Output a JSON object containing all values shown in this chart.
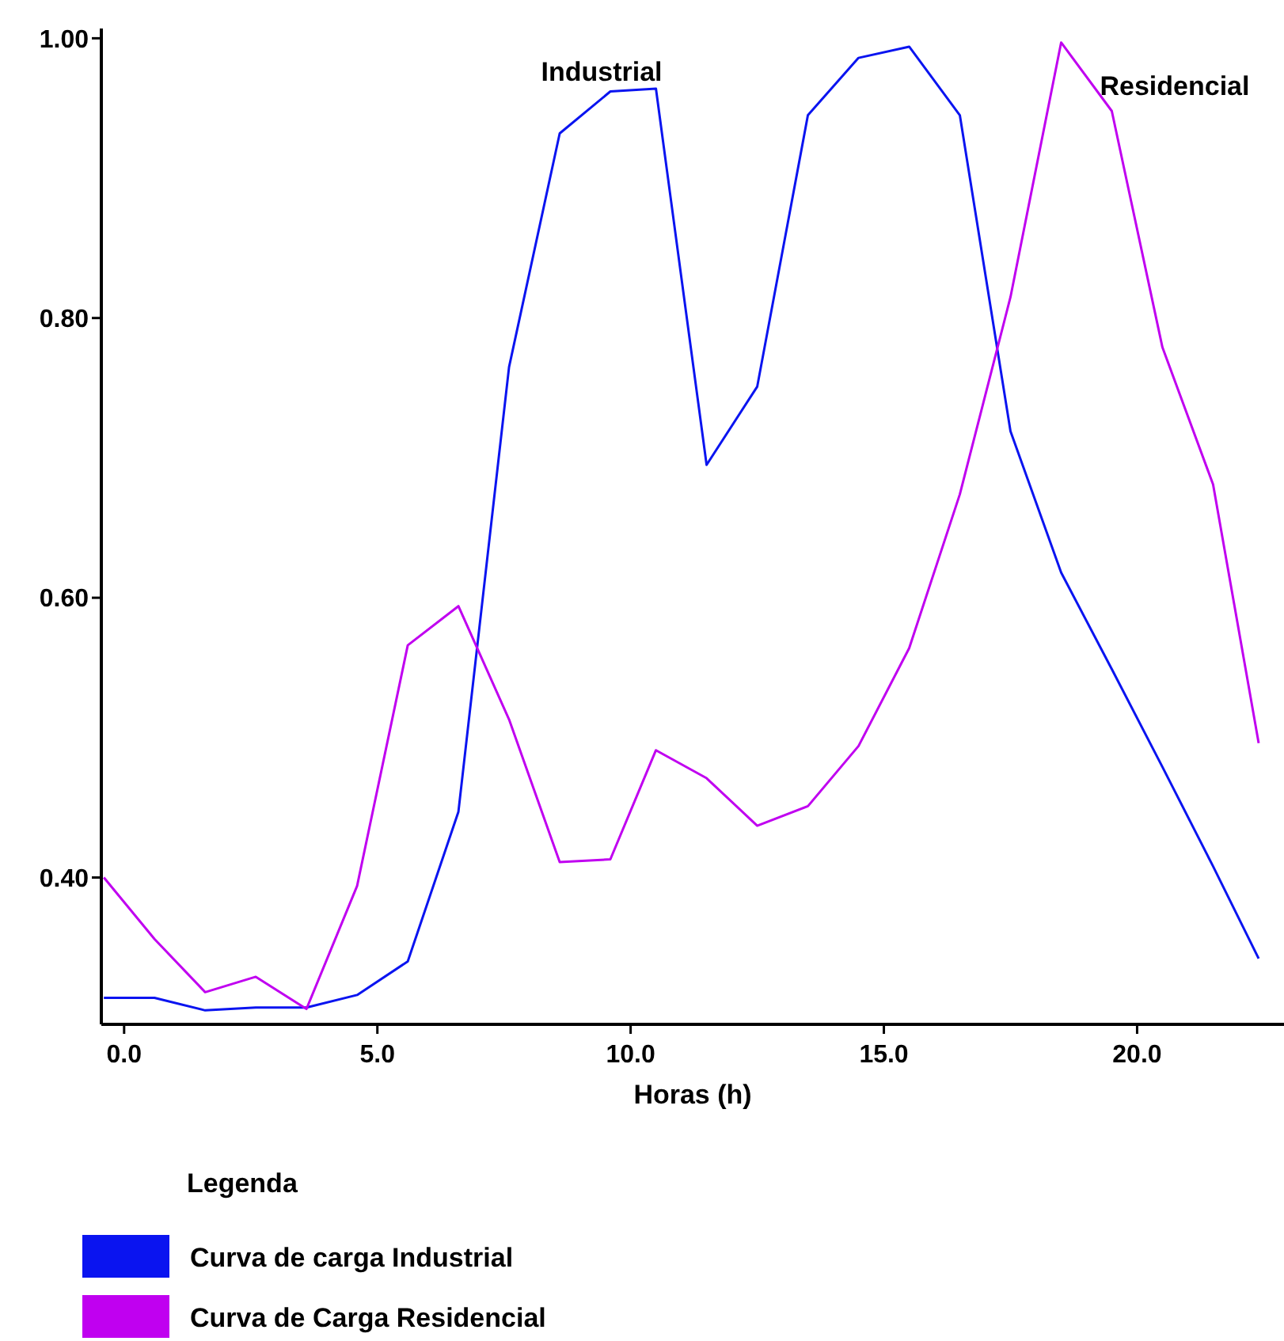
{
  "chart_data": {
    "type": "line",
    "xlabel": "Horas (h)",
    "legend_title": "Legenda",
    "x": [
      -0.4,
      0.6,
      1.6,
      2.6,
      3.6,
      4.6,
      5.6,
      6.6,
      7.6,
      8.6,
      9.6,
      10.5,
      11.5,
      12.5,
      13.5,
      14.5,
      15.5,
      16.5,
      17.5,
      18.5,
      19.5,
      20.5,
      21.5,
      22.4
    ],
    "series": [
      {
        "name": "Curva de carga Industrial",
        "color": "#0a14f0",
        "values": [
          0.314,
          0.314,
          0.305,
          0.307,
          0.307,
          0.316,
          0.34,
          0.447,
          0.765,
          0.932,
          0.962,
          0.964,
          0.695,
          0.751,
          0.945,
          0.986,
          0.994,
          0.945,
          0.719,
          0.618,
          0.549,
          0.479,
          0.408,
          0.342
        ]
      },
      {
        "name": "Curva de Carga Residencial",
        "color": "#c000f0",
        "values": [
          0.4,
          0.356,
          0.318,
          0.329,
          0.306,
          0.394,
          0.566,
          0.594,
          0.513,
          0.411,
          0.413,
          0.491,
          0.471,
          0.437,
          0.451,
          0.494,
          0.564,
          0.674,
          0.815,
          0.997,
          0.948,
          0.779,
          0.681,
          0.496
        ]
      }
    ],
    "annotations": [
      "Industrial",
      "Residencial"
    ],
    "xlim": [
      -0.45,
      22.9
    ],
    "xticks": [
      {
        "value": 0,
        "label": "0.0"
      },
      {
        "value": 5,
        "label": "5.0"
      },
      {
        "value": 10,
        "label": "10.0"
      },
      {
        "value": 15,
        "label": "15.0"
      },
      {
        "value": 20,
        "label": "20.0"
      }
    ],
    "ylim": [
      0.295,
      1.007
    ],
    "yticks": [
      {
        "value": 0.4,
        "label": "0.40"
      },
      {
        "value": 0.6,
        "label": "0.60"
      },
      {
        "value": 0.8,
        "label": "0.80"
      },
      {
        "value": 1,
        "label": "1.00"
      }
    ],
    "grid": false,
    "legend": "bottom",
    "marker": "none",
    "line_style": "solid"
  }
}
